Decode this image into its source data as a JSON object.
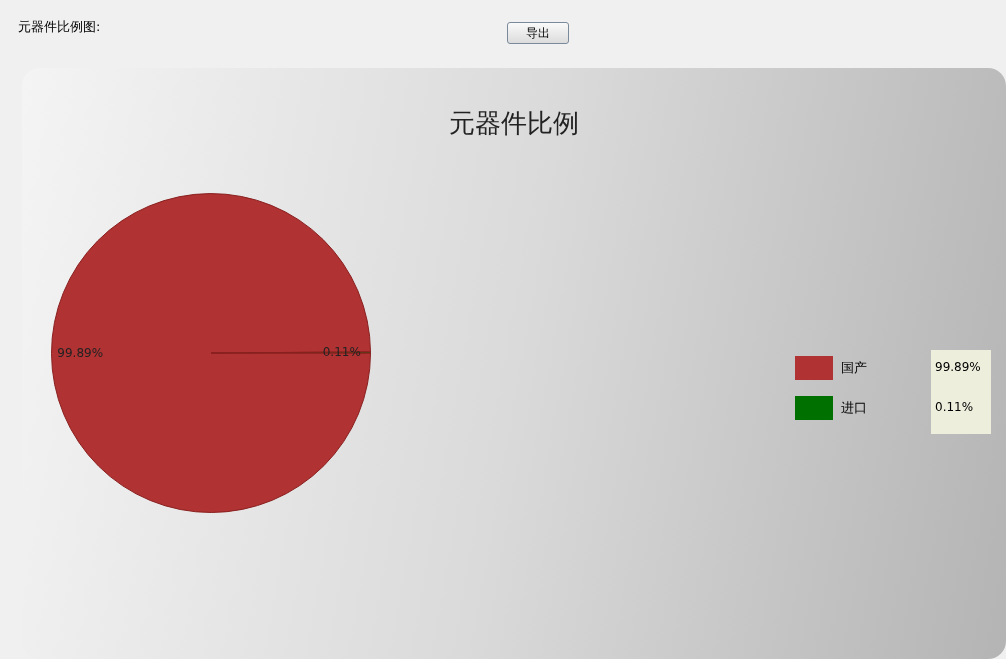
{
  "chart_data": {
    "type": "pie",
    "title": "元器件比例",
    "categories": [
      "国产",
      "进口"
    ],
    "values": [
      99.89,
      0.11
    ],
    "colors": [
      "#b03232",
      "#007000"
    ],
    "value_labels": [
      "99.89%",
      "0.11%"
    ],
    "legend": "right",
    "annotations": [
      "元器件比例图:",
      "导出"
    ]
  }
}
